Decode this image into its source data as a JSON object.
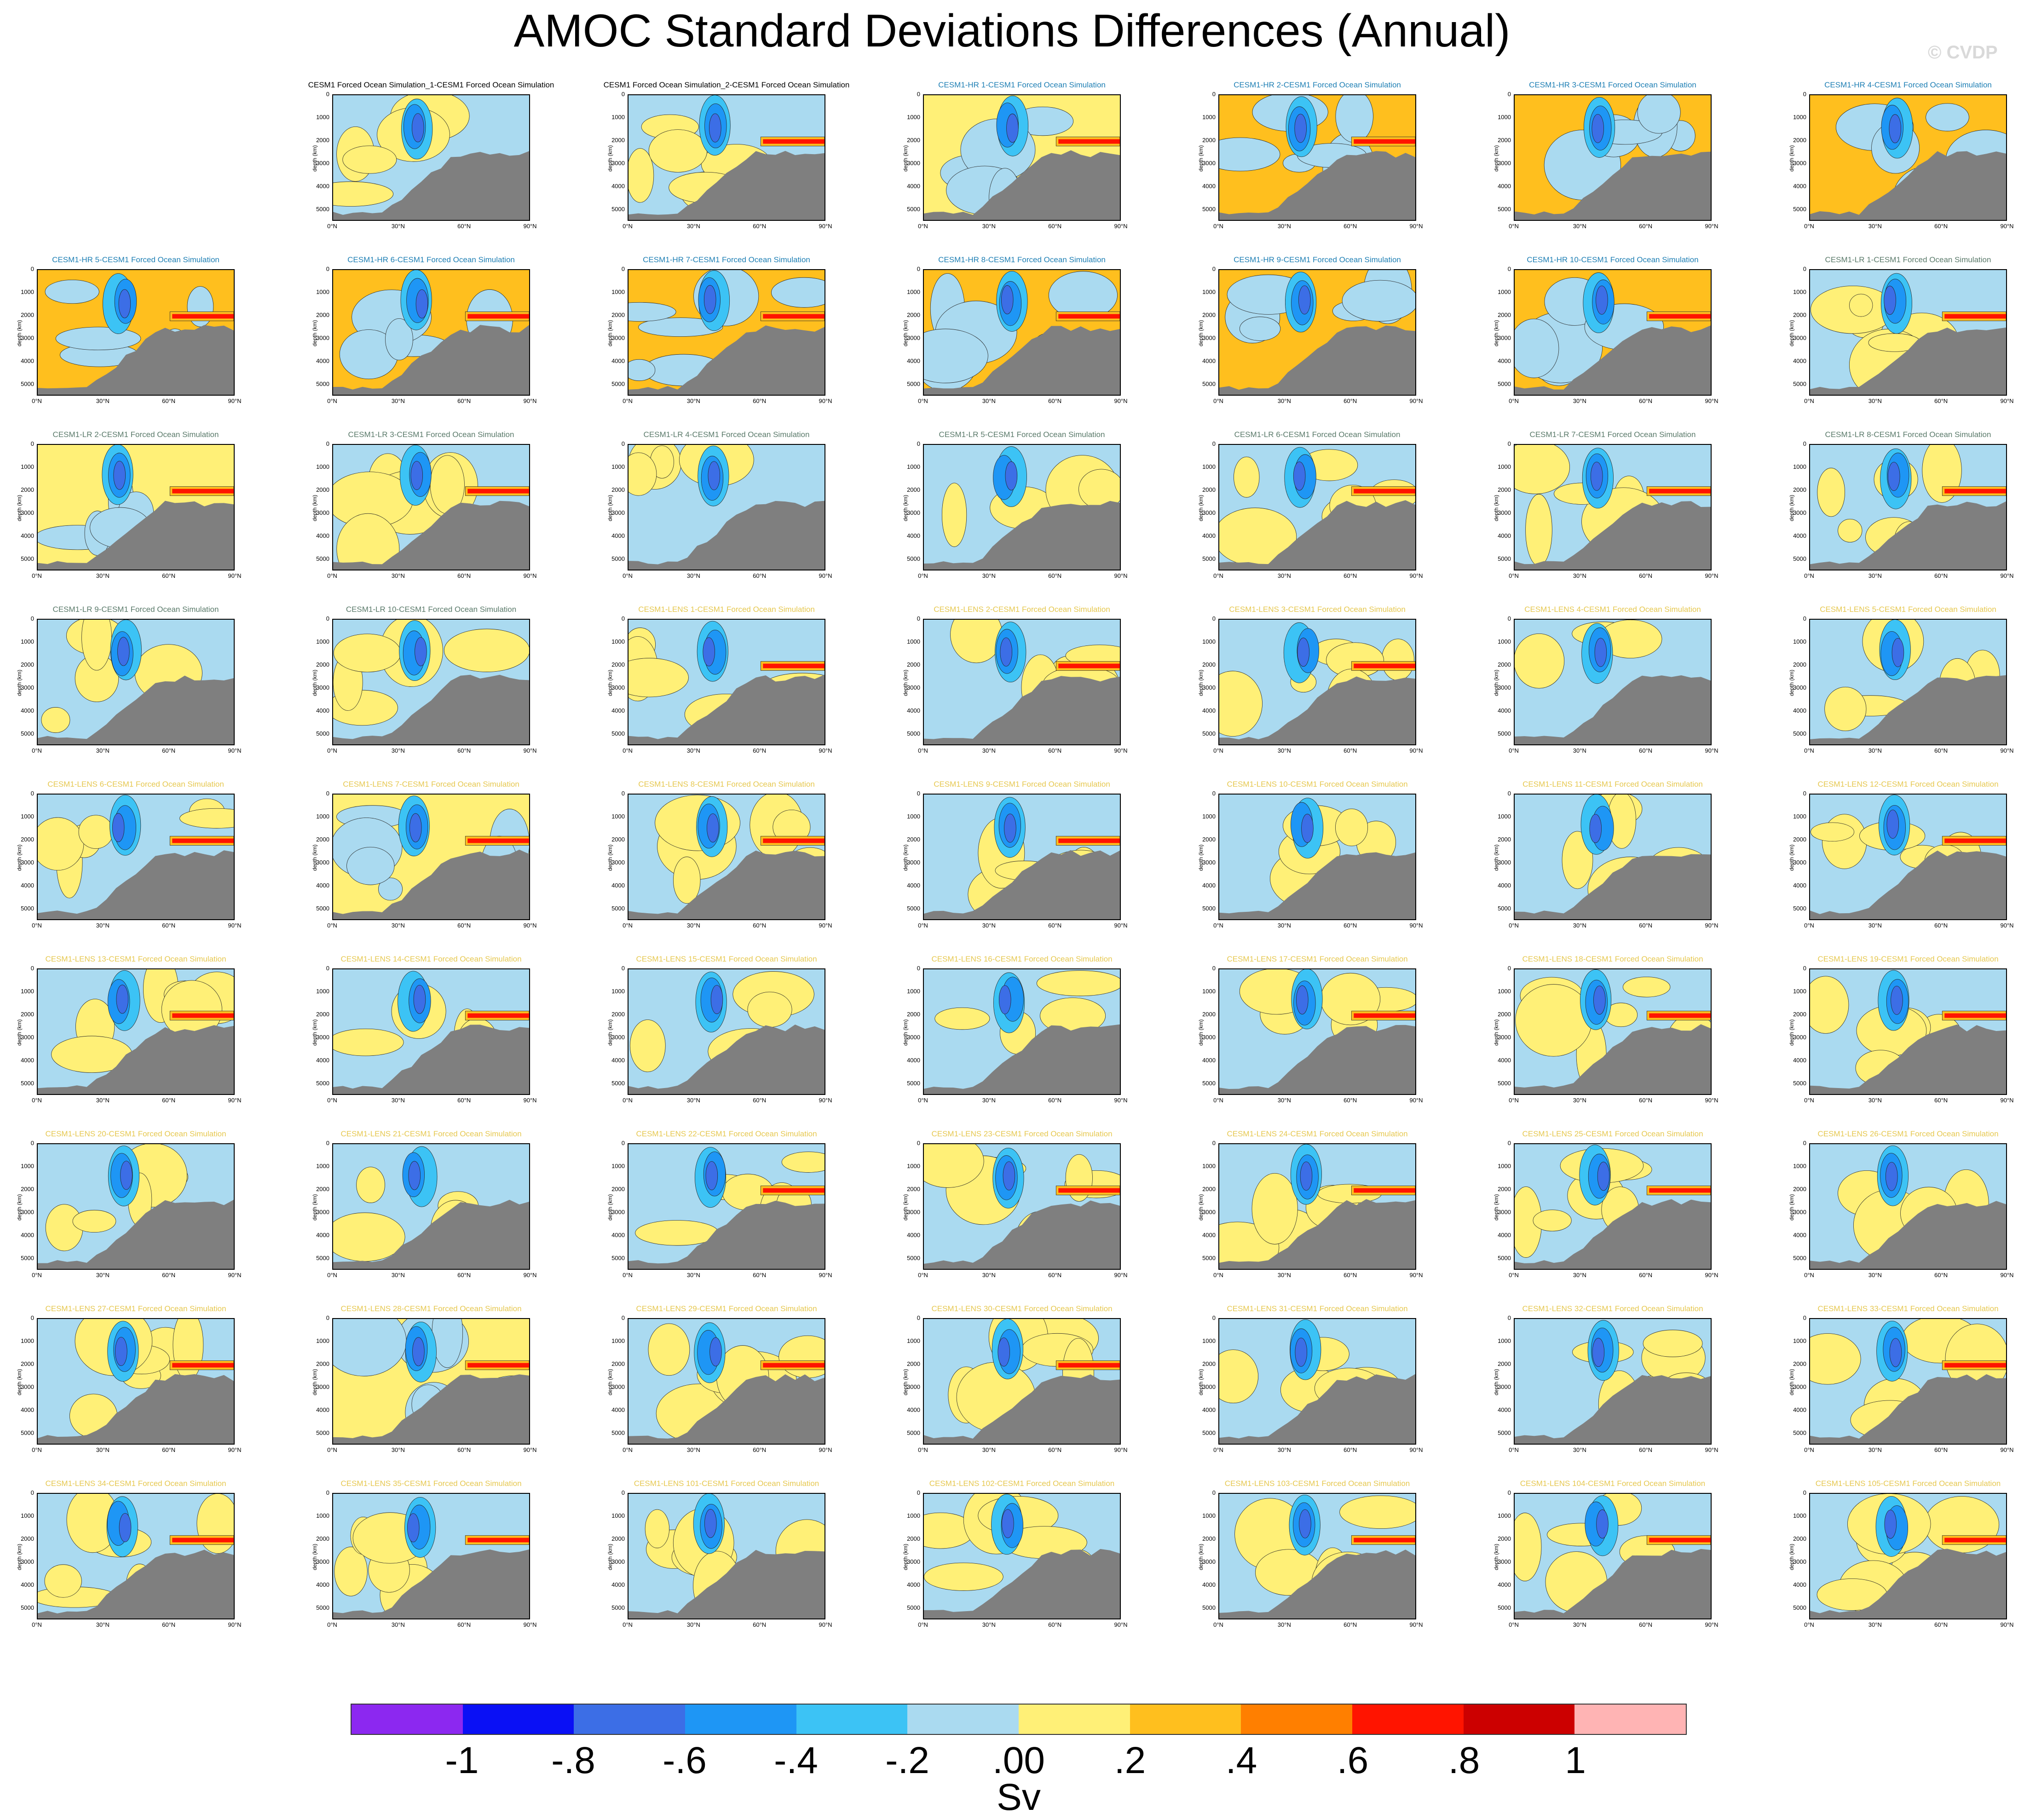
{
  "title": "AMOC Standard Deviations Differences (Annual)",
  "watermark": "© CVDP",
  "chart_data": {
    "type": "heatmap",
    "title": "AMOC Standard Deviations Differences (Annual)",
    "units": "Sv",
    "ylabel": "depth (km)",
    "xticks": [
      "0°N",
      "30°N",
      "60°N",
      "90°N"
    ],
    "yticks": [
      "0",
      "1000",
      "2000",
      "3000",
      "4000",
      "5000"
    ],
    "xlim": [
      0,
      90
    ],
    "ylim": [
      5500,
      0
    ],
    "colorbar": {
      "labels": [
        "-1",
        "-.8",
        "-.6",
        "-.4",
        "-.2",
        ".00",
        ".2",
        ".4",
        ".6",
        ".8",
        "1"
      ],
      "colors": [
        "#8c28f0",
        "#0a10f5",
        "#3c6ee6",
        "#1e96f5",
        "#3cc3f5",
        "#aadaf0",
        "#fff077",
        "#ffbf1e",
        "#ff7f00",
        "#ff1400",
        "#cc0000",
        "#ffb4b4"
      ]
    },
    "panels": [
      {
        "title": "CESM1 Forced Ocean Simulation_1-CESM1 Forced Ocean Simulation",
        "color": "#000000",
        "bg": "#aadaf0"
      },
      {
        "title": "CESM1 Forced Ocean Simulation_2-CESM1 Forced Ocean Simulation",
        "color": "#000000",
        "bg": "#aadaf0"
      },
      {
        "title": "CESM1-HR 1-CESM1 Forced Ocean Simulation",
        "color": "#1e7fb4",
        "bg": "#fff077"
      },
      {
        "title": "CESM1-HR 2-CESM1 Forced Ocean Simulation",
        "color": "#1e7fb4",
        "bg": "#ffbf1e"
      },
      {
        "title": "CESM1-HR 3-CESM1 Forced Ocean Simulation",
        "color": "#1e7fb4",
        "bg": "#ffbf1e"
      },
      {
        "title": "CESM1-HR 4-CESM1 Forced Ocean Simulation",
        "color": "#1e7fb4",
        "bg": "#ffbf1e"
      },
      {
        "title": "CESM1-HR 5-CESM1 Forced Ocean Simulation",
        "color": "#1e7fb4",
        "bg": "#ffbf1e"
      },
      {
        "title": "CESM1-HR 6-CESM1 Forced Ocean Simulation",
        "color": "#1e7fb4",
        "bg": "#ffbf1e"
      },
      {
        "title": "CESM1-HR 7-CESM1 Forced Ocean Simulation",
        "color": "#1e7fb4",
        "bg": "#ffbf1e"
      },
      {
        "title": "CESM1-HR 8-CESM1 Forced Ocean Simulation",
        "color": "#1e7fb4",
        "bg": "#ffbf1e"
      },
      {
        "title": "CESM1-HR 9-CESM1 Forced Ocean Simulation",
        "color": "#1e7fb4",
        "bg": "#ffbf1e"
      },
      {
        "title": "CESM1-HR 10-CESM1 Forced Ocean Simulation",
        "color": "#1e7fb4",
        "bg": "#ffbf1e"
      },
      {
        "title": "CESM1-LR 1-CESM1 Forced Ocean Simulation",
        "color": "#5a7a6a",
        "bg": "#aadaf0"
      },
      {
        "title": "CESM1-LR 2-CESM1 Forced Ocean Simulation",
        "color": "#5a7a6a",
        "bg": "#fff077"
      },
      {
        "title": "CESM1-LR 3-CESM1 Forced Ocean Simulation",
        "color": "#5a7a6a",
        "bg": "#aadaf0"
      },
      {
        "title": "CESM1-LR 4-CESM1 Forced Ocean Simulation",
        "color": "#5a7a6a",
        "bg": "#aadaf0"
      },
      {
        "title": "CESM1-LR 5-CESM1 Forced Ocean Simulation",
        "color": "#5a7a6a",
        "bg": "#aadaf0"
      },
      {
        "title": "CESM1-LR 6-CESM1 Forced Ocean Simulation",
        "color": "#5a7a6a",
        "bg": "#aadaf0"
      },
      {
        "title": "CESM1-LR 7-CESM1 Forced Ocean Simulation",
        "color": "#5a7a6a",
        "bg": "#aadaf0"
      },
      {
        "title": "CESM1-LR 8-CESM1 Forced Ocean Simulation",
        "color": "#5a7a6a",
        "bg": "#aadaf0"
      },
      {
        "title": "CESM1-LR 9-CESM1 Forced Ocean Simulation",
        "color": "#5a7a6a",
        "bg": "#aadaf0"
      },
      {
        "title": "CESM1-LR 10-CESM1 Forced Ocean Simulation",
        "color": "#5a7a6a",
        "bg": "#aadaf0"
      },
      {
        "title": "CESM1-LENS 1-CESM1 Forced Ocean Simulation",
        "color": "#e6c850",
        "bg": "#aadaf0"
      },
      {
        "title": "CESM1-LENS 2-CESM1 Forced Ocean Simulation",
        "color": "#e6c850",
        "bg": "#aadaf0"
      },
      {
        "title": "CESM1-LENS 3-CESM1 Forced Ocean Simulation",
        "color": "#e6c850",
        "bg": "#aadaf0"
      },
      {
        "title": "CESM1-LENS 4-CESM1 Forced Ocean Simulation",
        "color": "#e6c850",
        "bg": "#aadaf0"
      },
      {
        "title": "CESM1-LENS 5-CESM1 Forced Ocean Simulation",
        "color": "#e6c850",
        "bg": "#aadaf0"
      },
      {
        "title": "CESM1-LENS 6-CESM1 Forced Ocean Simulation",
        "color": "#e6c850",
        "bg": "#aadaf0"
      },
      {
        "title": "CESM1-LENS 7-CESM1 Forced Ocean Simulation",
        "color": "#e6c850",
        "bg": "#fff077"
      },
      {
        "title": "CESM1-LENS 8-CESM1 Forced Ocean Simulation",
        "color": "#e6c850",
        "bg": "#aadaf0"
      },
      {
        "title": "CESM1-LENS 9-CESM1 Forced Ocean Simulation",
        "color": "#e6c850",
        "bg": "#aadaf0"
      },
      {
        "title": "CESM1-LENS 10-CESM1 Forced Ocean Simulation",
        "color": "#e6c850",
        "bg": "#aadaf0"
      },
      {
        "title": "CESM1-LENS 11-CESM1 Forced Ocean Simulation",
        "color": "#e6c850",
        "bg": "#aadaf0"
      },
      {
        "title": "CESM1-LENS 12-CESM1 Forced Ocean Simulation",
        "color": "#e6c850",
        "bg": "#aadaf0"
      },
      {
        "title": "CESM1-LENS 13-CESM1 Forced Ocean Simulation",
        "color": "#e6c850",
        "bg": "#aadaf0"
      },
      {
        "title": "CESM1-LENS 14-CESM1 Forced Ocean Simulation",
        "color": "#e6c850",
        "bg": "#aadaf0"
      },
      {
        "title": "CESM1-LENS 15-CESM1 Forced Ocean Simulation",
        "color": "#e6c850",
        "bg": "#aadaf0"
      },
      {
        "title": "CESM1-LENS 16-CESM1 Forced Ocean Simulation",
        "color": "#e6c850",
        "bg": "#aadaf0"
      },
      {
        "title": "CESM1-LENS 17-CESM1 Forced Ocean Simulation",
        "color": "#e6c850",
        "bg": "#aadaf0"
      },
      {
        "title": "CESM1-LENS 18-CESM1 Forced Ocean Simulation",
        "color": "#e6c850",
        "bg": "#aadaf0"
      },
      {
        "title": "CESM1-LENS 19-CESM1 Forced Ocean Simulation",
        "color": "#e6c850",
        "bg": "#aadaf0"
      },
      {
        "title": "CESM1-LENS 20-CESM1 Forced Ocean Simulation",
        "color": "#e6c850",
        "bg": "#aadaf0"
      },
      {
        "title": "CESM1-LENS 21-CESM1 Forced Ocean Simulation",
        "color": "#e6c850",
        "bg": "#aadaf0"
      },
      {
        "title": "CESM1-LENS 22-CESM1 Forced Ocean Simulation",
        "color": "#e6c850",
        "bg": "#aadaf0"
      },
      {
        "title": "CESM1-LENS 23-CESM1 Forced Ocean Simulation",
        "color": "#e6c850",
        "bg": "#aadaf0"
      },
      {
        "title": "CESM1-LENS 24-CESM1 Forced Ocean Simulation",
        "color": "#e6c850",
        "bg": "#aadaf0"
      },
      {
        "title": "CESM1-LENS 25-CESM1 Forced Ocean Simulation",
        "color": "#e6c850",
        "bg": "#aadaf0"
      },
      {
        "title": "CESM1-LENS 26-CESM1 Forced Ocean Simulation",
        "color": "#e6c850",
        "bg": "#aadaf0"
      },
      {
        "title": "CESM1-LENS 27-CESM1 Forced Ocean Simulation",
        "color": "#e6c850",
        "bg": "#aadaf0"
      },
      {
        "title": "CESM1-LENS 28-CESM1 Forced Ocean Simulation",
        "color": "#e6c850",
        "bg": "#fff077"
      },
      {
        "title": "CESM1-LENS 29-CESM1 Forced Ocean Simulation",
        "color": "#e6c850",
        "bg": "#aadaf0"
      },
      {
        "title": "CESM1-LENS 30-CESM1 Forced Ocean Simulation",
        "color": "#e6c850",
        "bg": "#aadaf0"
      },
      {
        "title": "CESM1-LENS 31-CESM1 Forced Ocean Simulation",
        "color": "#e6c850",
        "bg": "#aadaf0"
      },
      {
        "title": "CESM1-LENS 32-CESM1 Forced Ocean Simulation",
        "color": "#e6c850",
        "bg": "#aadaf0"
      },
      {
        "title": "CESM1-LENS 33-CESM1 Forced Ocean Simulation",
        "color": "#e6c850",
        "bg": "#aadaf0"
      },
      {
        "title": "CESM1-LENS 34-CESM1 Forced Ocean Simulation",
        "color": "#e6c850",
        "bg": "#aadaf0"
      },
      {
        "title": "CESM1-LENS 35-CESM1 Forced Ocean Simulation",
        "color": "#e6c850",
        "bg": "#aadaf0"
      },
      {
        "title": "CESM1-LENS 101-CESM1 Forced Ocean Simulation",
        "color": "#e6c850",
        "bg": "#aadaf0"
      },
      {
        "title": "CESM1-LENS 102-CESM1 Forced Ocean Simulation",
        "color": "#e6c850",
        "bg": "#aadaf0"
      },
      {
        "title": "CESM1-LENS 103-CESM1 Forced Ocean Simulation",
        "color": "#e6c850",
        "bg": "#aadaf0"
      },
      {
        "title": "CESM1-LENS 104-CESM1 Forced Ocean Simulation",
        "color": "#e6c850",
        "bg": "#aadaf0"
      },
      {
        "title": "CESM1-LENS 105-CESM1 Forced Ocean Simulation",
        "color": "#e6c850",
        "bg": "#aadaf0"
      }
    ]
  }
}
